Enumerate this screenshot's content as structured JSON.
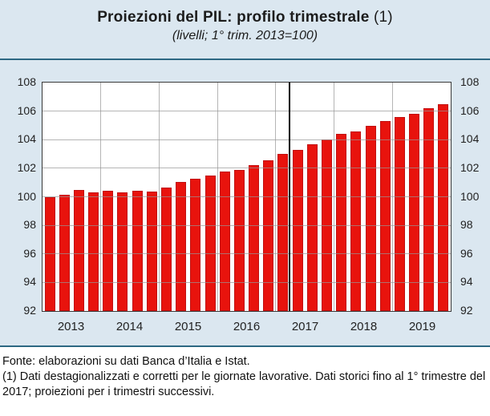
{
  "header": {
    "title": "Proiezioni del PIL: profilo trimestrale",
    "title_note": " (1)",
    "subtitle": "(livelli; 1° trim. 2013=100)"
  },
  "chart_data": {
    "type": "bar",
    "title": "Proiezioni del PIL: profilo trimestrale (1)",
    "subtitle": "(livelli; 1° trim. 2013=100)",
    "categories": [
      "2013 T1",
      "2013 T2",
      "2013 T3",
      "2013 T4",
      "2014 T1",
      "2014 T2",
      "2014 T3",
      "2014 T4",
      "2015 T1",
      "2015 T2",
      "2015 T3",
      "2015 T4",
      "2016 T1",
      "2016 T2",
      "2016 T3",
      "2016 T4",
      "2017 T1",
      "2017 T2",
      "2017 T3",
      "2017 T4",
      "2018 T1",
      "2018 T2",
      "2018 T3",
      "2018 T4",
      "2019 T1",
      "2019 T2",
      "2019 T3",
      "2019 T4"
    ],
    "values": [
      100.0,
      100.15,
      100.45,
      100.3,
      100.4,
      100.3,
      100.4,
      100.35,
      100.65,
      101.05,
      101.25,
      101.5,
      101.75,
      101.9,
      102.2,
      102.55,
      103.0,
      103.3,
      103.7,
      104.0,
      104.4,
      104.55,
      104.95,
      105.3,
      105.6,
      105.8,
      106.2,
      106.5
    ],
    "year_labels": [
      "2013",
      "2014",
      "2015",
      "2016",
      "2017",
      "2018",
      "2019"
    ],
    "ylim": [
      92,
      108
    ],
    "yticks": [
      92,
      94,
      96,
      98,
      100,
      102,
      104,
      106,
      108
    ],
    "grid": true,
    "legend": "none",
    "ylabel": "",
    "xlabel": "",
    "bar_color": "#e8130d",
    "divider_after_index": 17,
    "historical_until": "2017 T1"
  },
  "footer": {
    "source": "Fonte: elaborazioni su dati Banca d’Italia e Istat.",
    "note": "(1) Dati destagionalizzati e corretti per le giornate lavorative. Dati storici fino al 1° trimestre del 2017; proiezioni per i trimestri successivi."
  },
  "colors": {
    "panel_background": "#dbe7f0",
    "rule": "#2d6883",
    "bar": "#e8130d",
    "bar_border": "#c01010",
    "grid": "#969696",
    "divider": "#000000",
    "plot_border": "#3a3a3a",
    "text": "#1c1c1c"
  }
}
